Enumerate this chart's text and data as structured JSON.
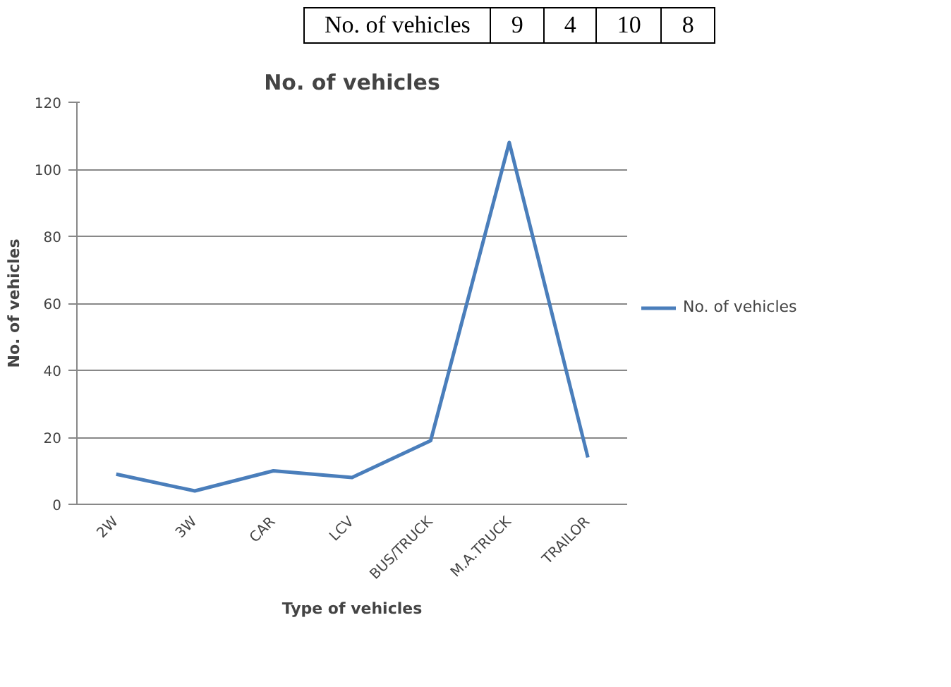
{
  "chart_data": {
    "type": "line",
    "title": "No. of vehicles",
    "xlabel": "Type of vehicles",
    "ylabel": "No. of vehicles",
    "categories": [
      "2W",
      "3W",
      "CAR",
      "LCV",
      "BUS/TRUCK",
      "M.A.TRUCK",
      "TRAILOR"
    ],
    "series": [
      {
        "name": "No. of vehicles",
        "color": "#4a7ebb",
        "values": [
          9,
          4,
          10,
          8,
          19,
          108,
          14
        ]
      }
    ],
    "ylim": [
      0,
      120
    ],
    "yticks": [
      0,
      20,
      40,
      60,
      80,
      100,
      120
    ],
    "grid": "y",
    "legend": "right",
    "marker": "none",
    "line_style": "solid",
    "annotations": [
      "No. of vehicles",
      "9",
      "4",
      "10",
      "8"
    ]
  }
}
